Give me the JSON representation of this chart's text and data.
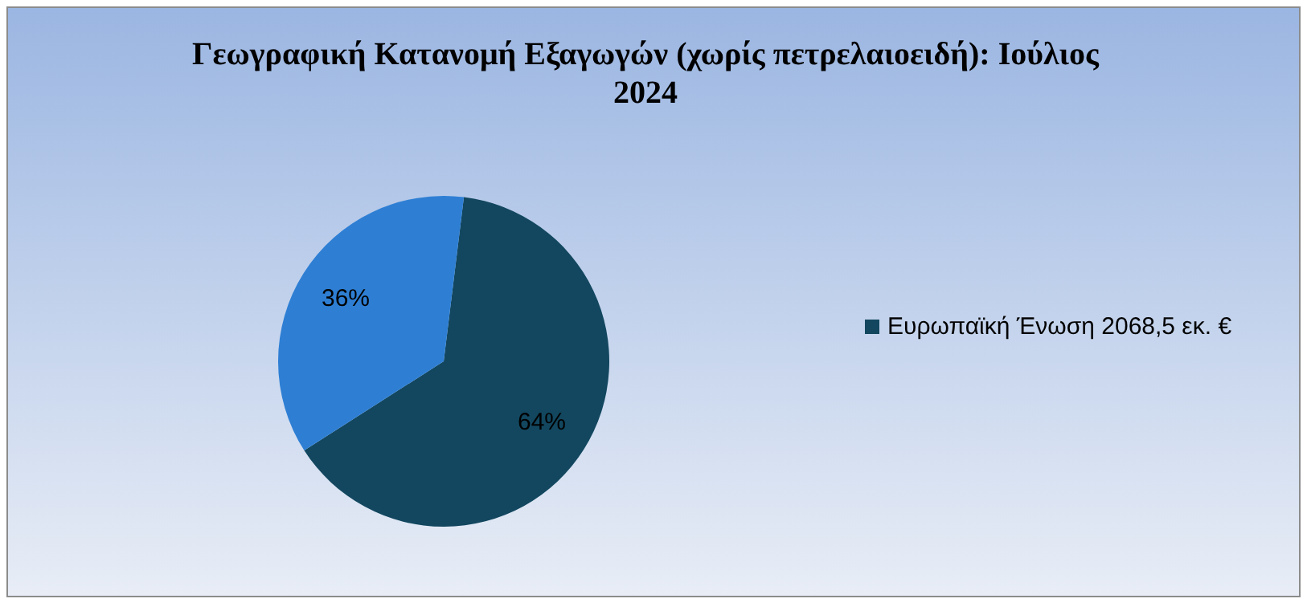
{
  "chart_data": {
    "type": "pie",
    "title": "Γεωγραφική Κατανομή Εξαγωγών (χωρίς πετρελαιοειδή): Ιούλιος 2024",
    "categories": [
      "Ευρωπαϊκή Ένωση 2068,5 εκ. €",
      null
    ],
    "values": [
      64,
      36
    ],
    "colors": [
      "#12475f",
      "#2e7fd4"
    ],
    "value_labels": [
      "64%",
      "36%"
    ],
    "legend": "right"
  }
}
